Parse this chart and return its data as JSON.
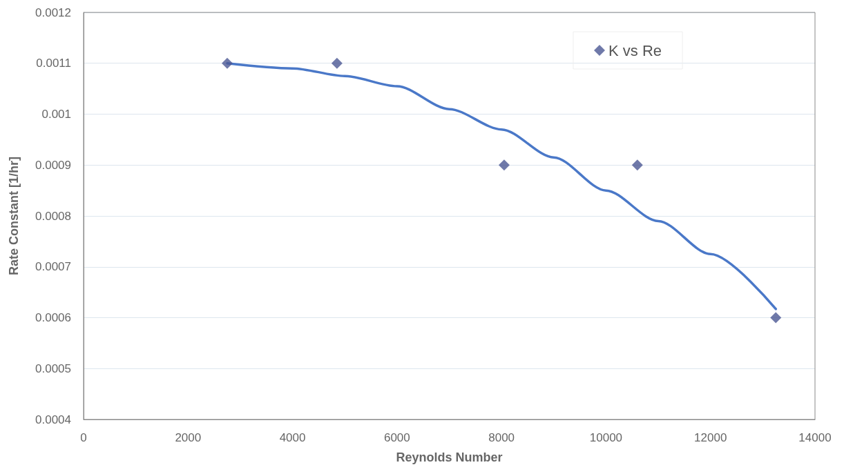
{
  "chart_data": {
    "type": "scatter",
    "xlabel": "Reynolds Number",
    "ylabel": "Rate Constant [1/hr]",
    "series": [
      {
        "name": "K vs Re",
        "color": "#4b5794",
        "marker": "diamond",
        "x": [
          2750,
          4850,
          8050,
          10600,
          13250
        ],
        "values": [
          0.0011,
          0.0011,
          0.0009,
          0.0009,
          0.0006
        ]
      },
      {
        "type": "line",
        "color": "#4a78c8",
        "marker": "none",
        "line_style": "solid",
        "x": [
          2750,
          4000,
          5000,
          6000,
          7000,
          8000,
          9000,
          10000,
          11000,
          12000,
          13250
        ],
        "values": [
          0.0011,
          0.00109,
          0.001075,
          0.001055,
          0.00101,
          0.00097,
          0.000915,
          0.00085,
          0.00079,
          0.000725,
          0.000617
        ]
      }
    ],
    "xlim": [
      0,
      14000
    ],
    "xticks": [
      0,
      2000,
      4000,
      6000,
      8000,
      10000,
      12000,
      14000
    ],
    "ylim": [
      0.0004,
      0.0012
    ],
    "yticks": [
      0.0004,
      0.0005,
      0.0006,
      0.0007,
      0.0008,
      0.0009,
      0.001,
      0.0011,
      0.0012
    ],
    "grid": "y",
    "legend": "top right"
  }
}
